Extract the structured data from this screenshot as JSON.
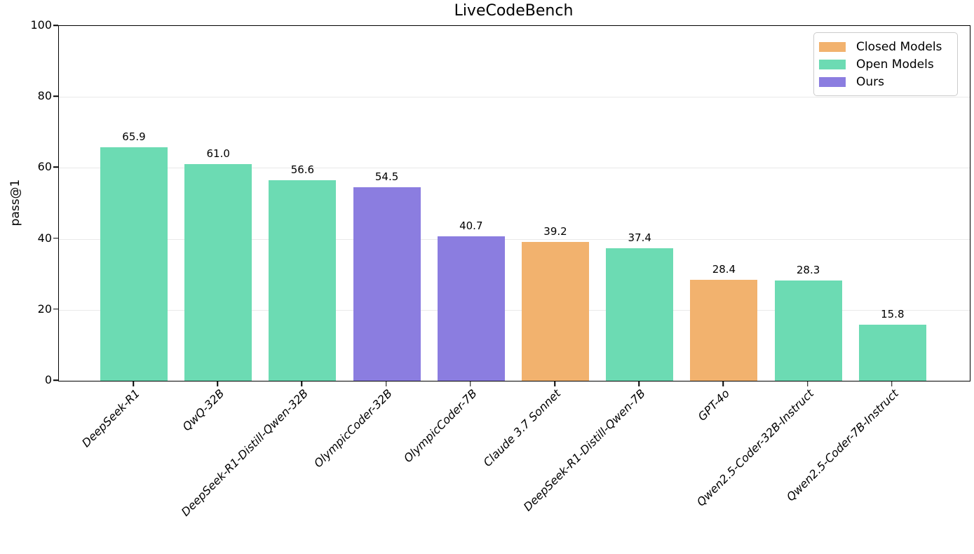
{
  "chart_data": {
    "type": "bar",
    "title": "LiveCodeBench",
    "xlabel": "",
    "ylabel": "pass@1",
    "ylim": [
      0,
      100
    ],
    "yticks": [
      0,
      20,
      40,
      60,
      80,
      100
    ],
    "grid": "horizontal-light",
    "legend_position": "upper right",
    "categories": [
      "DeepSeek-R1",
      "QwQ-32B",
      "DeepSeek-R1-Distill-Qwen-32B",
      "OlympicCoder-32B",
      "OlympicCoder-7B",
      "Claude 3.7 Sonnet",
      "DeepSeek-R1-Distill-Qwen-7B",
      "GPT-4o",
      "Qwen2.5-Coder-32B-Instruct",
      "Qwen2.5-Coder-7B-Instruct"
    ],
    "values": [
      65.9,
      61.0,
      56.6,
      54.5,
      40.7,
      39.2,
      37.4,
      28.4,
      28.3,
      15.8
    ],
    "value_labels": [
      "65.9",
      "61.0",
      "56.6",
      "54.5",
      "40.7",
      "39.2",
      "37.4",
      "28.4",
      "28.3",
      "15.8"
    ],
    "series_group": [
      "open",
      "open",
      "open",
      "ours",
      "ours",
      "closed",
      "open",
      "closed",
      "open",
      "open"
    ],
    "colors": {
      "closed": "#F2B26E",
      "open": "#6CDBB3",
      "ours": "#8B7DE0"
    },
    "axis_color": "#000000",
    "grid_color": "#e9e9e9",
    "legend": [
      {
        "label": "Closed Models",
        "key": "closed"
      },
      {
        "label": "Open Models",
        "key": "open"
      },
      {
        "label": "Ours",
        "key": "ours"
      }
    ]
  }
}
